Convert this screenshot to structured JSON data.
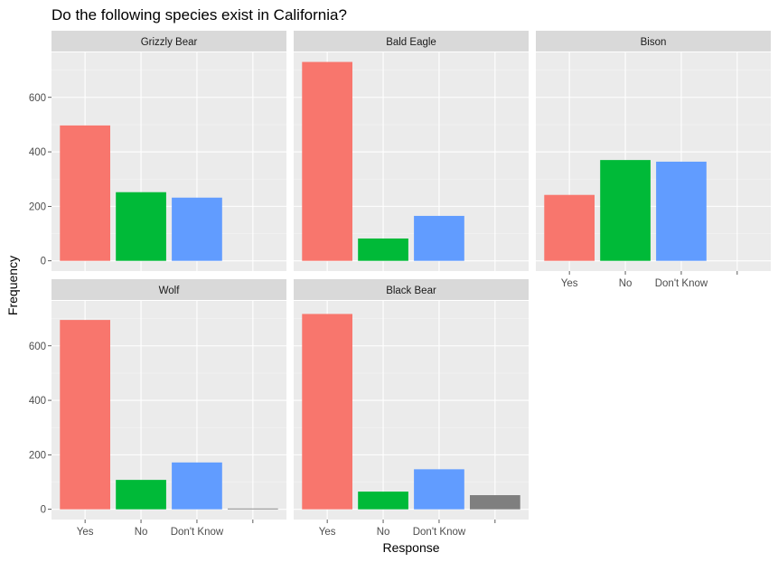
{
  "chart_data": {
    "type": "bar",
    "title": "Do the following species exist in California?",
    "xlabel": "Response",
    "ylabel": "Frequency",
    "categories": [
      "Yes",
      "No",
      "Don't Know",
      ""
    ],
    "category_colors": [
      "#F8766D",
      "#00BA38",
      "#619CFF",
      "#7F7F7F"
    ],
    "ylim": [
      0,
      750
    ],
    "yticks": [
      0,
      200,
      400,
      600
    ],
    "grid": true,
    "panels": [
      {
        "name": "Grizzly Bear",
        "values": [
          497,
          252,
          232,
          null
        ]
      },
      {
        "name": "Bald Eagle",
        "values": [
          730,
          82,
          165,
          null
        ]
      },
      {
        "name": "Bison",
        "values": [
          242,
          370,
          364,
          null
        ]
      },
      {
        "name": "Wolf",
        "values": [
          695,
          108,
          172,
          3
        ]
      },
      {
        "name": "Black Bear",
        "values": [
          717,
          65,
          147,
          52
        ]
      }
    ]
  }
}
